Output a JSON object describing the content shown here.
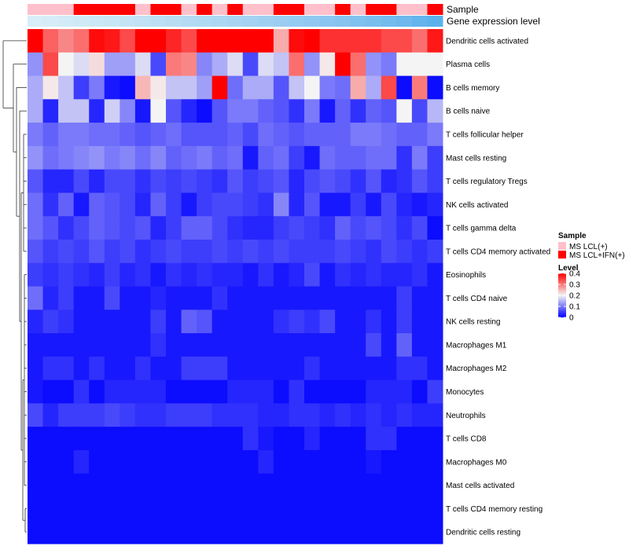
{
  "chart_data": {
    "type": "heatmap",
    "title": "",
    "annotation_tracks": {
      "sample_label": "Sample",
      "gene_expression_label": "Gene expression level",
      "sample_groups": [
        "LCL",
        "LCL",
        "LCL",
        "IFN",
        "IFN",
        "IFN",
        "IFN",
        "LCL",
        "IFN",
        "IFN",
        "LCL",
        "IFN",
        "LCL",
        "IFN",
        "LCL",
        "LCL",
        "IFN",
        "IFN",
        "LCL",
        "LCL",
        "IFN",
        "LCL",
        "IFN",
        "IFN",
        "LCL",
        "LCL",
        "IFN"
      ],
      "gene_expression_colors": [
        "#d8eef8",
        "#d6edf7",
        "#d2ebf7",
        "#cfeaf6",
        "#cbe8f6",
        "#c8e6f5",
        "#c4e4f5",
        "#c0e2f4",
        "#bcdff4",
        "#b8ddf3",
        "#b4dbf3",
        "#b0d9f3",
        "#acd7f3",
        "#a8d4f2",
        "#a3d2f2",
        "#9fd0f2",
        "#9acdf1",
        "#95cbf1",
        "#90c8f0",
        "#8bc6f0",
        "#86c3ef",
        "#80c0ef",
        "#7abeee",
        "#74bbee",
        "#6eb8ed",
        "#64b4ed",
        "#5bb1ec"
      ]
    },
    "rows": [
      "Dendritic cells activated",
      "Plasma cells",
      "B cells memory",
      "B cells naive",
      "T cells follicular helper",
      "Mast cells resting",
      "T cells regulatory  Tregs",
      "NK cells activated",
      "T cells gamma delta",
      "T cells CD4 memory activated",
      "Eosinophils",
      "T cells CD4 naive",
      "NK cells resting",
      "Macrophages M1",
      "Macrophages M2",
      "Monocytes",
      "Neutrophils",
      "T cells CD8",
      "Macrophages M0",
      "Mast cells activated",
      "T cells CD4 memory resting",
      "Dendritic cells resting"
    ],
    "values": [
      [
        0.4,
        0.32,
        0.29,
        0.31,
        0.39,
        0.38,
        0.34,
        0.4,
        0.4,
        0.37,
        0.34,
        0.4,
        0.4,
        0.4,
        0.4,
        0.4,
        0.26,
        0.39,
        0.4,
        0.36,
        0.36,
        0.36,
        0.36,
        0.34,
        0.34,
        0.31,
        0.38
      ],
      [
        0.12,
        0.34,
        0.2,
        0.18,
        0.22,
        0.13,
        0.13,
        0.18,
        0.06,
        0.3,
        0.29,
        0.11,
        0.14,
        0.18,
        0.06,
        0.18,
        0.16,
        0.31,
        0.12,
        0.21,
        0.4,
        0.31,
        0.12,
        0.1,
        0.2,
        0.2,
        0.2
      ],
      [
        0.14,
        0.21,
        0.16,
        0.05,
        0.1,
        0.02,
        0.01,
        0.25,
        0.21,
        0.16,
        0.16,
        0.13,
        0.4,
        0.09,
        0.14,
        0.14,
        0.07,
        0.16,
        0.2,
        0.1,
        0.09,
        0.26,
        0.14,
        0.34,
        0.01,
        0.3,
        0.01
      ],
      [
        0.14,
        0.03,
        0.16,
        0.16,
        0.03,
        0.17,
        0.11,
        0.02,
        0.2,
        0.07,
        0.03,
        0.01,
        0.07,
        0.1,
        0.1,
        0.08,
        0.07,
        0.04,
        0.1,
        0.02,
        0.08,
        0.04,
        0.08,
        0.07,
        0.2,
        0.06,
        0.15
      ],
      [
        0.1,
        0.08,
        0.1,
        0.1,
        0.09,
        0.09,
        0.08,
        0.07,
        0.08,
        0.09,
        0.07,
        0.07,
        0.07,
        0.08,
        0.06,
        0.09,
        0.08,
        0.07,
        0.08,
        0.08,
        0.08,
        0.1,
        0.1,
        0.09,
        0.08,
        0.08,
        0.1
      ],
      [
        0.12,
        0.09,
        0.1,
        0.11,
        0.12,
        0.1,
        0.11,
        0.09,
        0.11,
        0.08,
        0.09,
        0.1,
        0.08,
        0.09,
        0.02,
        0.08,
        0.09,
        0.05,
        0.02,
        0.09,
        0.08,
        0.08,
        0.09,
        0.09,
        0.04,
        0.1,
        0.05
      ],
      [
        0.07,
        0.03,
        0.03,
        0.06,
        0.03,
        0.06,
        0.06,
        0.04,
        0.06,
        0.05,
        0.06,
        0.05,
        0.04,
        0.07,
        0.05,
        0.06,
        0.07,
        0.03,
        0.06,
        0.07,
        0.06,
        0.04,
        0.07,
        0.03,
        0.04,
        0.07,
        0.05
      ],
      [
        0.09,
        0.04,
        0.08,
        0.02,
        0.08,
        0.07,
        0.06,
        0.03,
        0.08,
        0.05,
        0.02,
        0.05,
        0.06,
        0.06,
        0.05,
        0.04,
        0.11,
        0.03,
        0.07,
        0.02,
        0.02,
        0.05,
        0.02,
        0.06,
        0.03,
        0.02,
        0.03
      ],
      [
        0.09,
        0.07,
        0.04,
        0.06,
        0.08,
        0.07,
        0.06,
        0.07,
        0.03,
        0.05,
        0.08,
        0.08,
        0.06,
        0.04,
        0.03,
        0.03,
        0.05,
        0.06,
        0.05,
        0.04,
        0.08,
        0.06,
        0.07,
        0.06,
        0.04,
        0.06,
        0.01
      ],
      [
        0.07,
        0.05,
        0.06,
        0.05,
        0.07,
        0.05,
        0.06,
        0.04,
        0.05,
        0.06,
        0.05,
        0.05,
        0.06,
        0.05,
        0.06,
        0.05,
        0.06,
        0.05,
        0.05,
        0.05,
        0.06,
        0.05,
        0.04,
        0.06,
        0.05,
        0.04,
        0.05
      ],
      [
        0.05,
        0.04,
        0.05,
        0.04,
        0.03,
        0.05,
        0.03,
        0.04,
        0.02,
        0.04,
        0.03,
        0.04,
        0.03,
        0.03,
        0.02,
        0.04,
        0.02,
        0.03,
        0.06,
        0.02,
        0.04,
        0.03,
        0.04,
        0.03,
        0.03,
        0.04,
        0.02
      ],
      [
        0.09,
        0.03,
        0.05,
        0.02,
        0.02,
        0.06,
        0.02,
        0.02,
        0.03,
        0.02,
        0.02,
        0.02,
        0.04,
        0.02,
        0.02,
        0.02,
        0.02,
        0.02,
        0.02,
        0.02,
        0.02,
        0.02,
        0.02,
        0.02,
        0.05,
        0.02,
        0.02
      ],
      [
        0.03,
        0.05,
        0.04,
        0.02,
        0.02,
        0.02,
        0.02,
        0.02,
        0.05,
        0.02,
        0.08,
        0.07,
        0.02,
        0.02,
        0.02,
        0.02,
        0.04,
        0.05,
        0.04,
        0.06,
        0.02,
        0.02,
        0.04,
        0.02,
        0.05,
        0.02,
        0.02
      ],
      [
        0.02,
        0.02,
        0.02,
        0.02,
        0.02,
        0.02,
        0.02,
        0.02,
        0.04,
        0.02,
        0.02,
        0.02,
        0.02,
        0.02,
        0.02,
        0.02,
        0.02,
        0.02,
        0.02,
        0.02,
        0.02,
        0.02,
        0.06,
        0.02,
        0.08,
        0.02,
        0.02
      ],
      [
        0.02,
        0.04,
        0.04,
        0.02,
        0.04,
        0.02,
        0.02,
        0.04,
        0.02,
        0.02,
        0.05,
        0.05,
        0.05,
        0.02,
        0.02,
        0.02,
        0.02,
        0.02,
        0.04,
        0.02,
        0.02,
        0.02,
        0.02,
        0.02,
        0.04,
        0.04,
        0.02
      ],
      [
        0.02,
        0.01,
        0.01,
        0.04,
        0.01,
        0.03,
        0.03,
        0.03,
        0.03,
        0.01,
        0.01,
        0.01,
        0.01,
        0.03,
        0.03,
        0.03,
        0.01,
        0.04,
        0.01,
        0.01,
        0.01,
        0.01,
        0.03,
        0.03,
        0.03,
        0.01,
        0.05
      ],
      [
        0.06,
        0.03,
        0.05,
        0.05,
        0.05,
        0.06,
        0.05,
        0.04,
        0.04,
        0.05,
        0.05,
        0.05,
        0.04,
        0.04,
        0.04,
        0.03,
        0.03,
        0.04,
        0.04,
        0.03,
        0.04,
        0.03,
        0.04,
        0.03,
        0.04,
        0.03,
        0.03
      ],
      [
        0.01,
        0.01,
        0.01,
        0.01,
        0.01,
        0.01,
        0.01,
        0.01,
        0.01,
        0.01,
        0.01,
        0.01,
        0.01,
        0.01,
        0.04,
        0.02,
        0.01,
        0.01,
        0.03,
        0.01,
        0.01,
        0.01,
        0.04,
        0.04,
        0.01,
        0.01,
        0.01
      ],
      [
        0.01,
        0.01,
        0.01,
        0.03,
        0.01,
        0.01,
        0.01,
        0.01,
        0.01,
        0.01,
        0.01,
        0.01,
        0.01,
        0.01,
        0.01,
        0.03,
        0.01,
        0.01,
        0.01,
        0.01,
        0.01,
        0.01,
        0.02,
        0.01,
        0.01,
        0.01,
        0.01
      ],
      [
        0.01,
        0.01,
        0.01,
        0.01,
        0.01,
        0.01,
        0.01,
        0.01,
        0.01,
        0.01,
        0.01,
        0.01,
        0.01,
        0.01,
        0.01,
        0.01,
        0.01,
        0.01,
        0.01,
        0.01,
        0.01,
        0.01,
        0.01,
        0.01,
        0.01,
        0.01,
        0.01
      ],
      [
        0.01,
        0.01,
        0.01,
        0.01,
        0.01,
        0.01,
        0.01,
        0.01,
        0.01,
        0.01,
        0.01,
        0.01,
        0.01,
        0.01,
        0.01,
        0.01,
        0.01,
        0.01,
        0.01,
        0.01,
        0.01,
        0.01,
        0.01,
        0.01,
        0.01,
        0.01,
        0.01
      ],
      [
        0.01,
        0.01,
        0.01,
        0.01,
        0.01,
        0.01,
        0.01,
        0.01,
        0.01,
        0.01,
        0.01,
        0.01,
        0.01,
        0.01,
        0.01,
        0.01,
        0.01,
        0.01,
        0.01,
        0.01,
        0.01,
        0.01,
        0.01,
        0.01,
        0.01,
        0.01,
        0.01
      ]
    ],
    "color_scale": {
      "min": 0,
      "max": 0.4,
      "stops": [
        {
          "value": 0.0,
          "color": "#0000ff"
        },
        {
          "value": 0.2,
          "color": "#f4f4f4"
        },
        {
          "value": 0.4,
          "color": "#ff0000"
        }
      ]
    },
    "legends": {
      "sample": {
        "title": "Sample",
        "items": [
          {
            "key": "LCL",
            "label": "MS LCL(+)",
            "color": "#ffc0cb"
          },
          {
            "key": "IFN",
            "label": "MS LCL+IFN(+)",
            "color": "#ff0000"
          }
        ]
      },
      "level": {
        "title": "Level",
        "ticks": [
          {
            "value": 0.4,
            "label": "0.4"
          },
          {
            "value": 0.3,
            "label": "0.3"
          },
          {
            "value": 0.2,
            "label": "0.2"
          },
          {
            "value": 0.1,
            "label": "0.1"
          },
          {
            "value": 0.0,
            "label": "0"
          }
        ]
      }
    },
    "dendrogram": "row"
  }
}
